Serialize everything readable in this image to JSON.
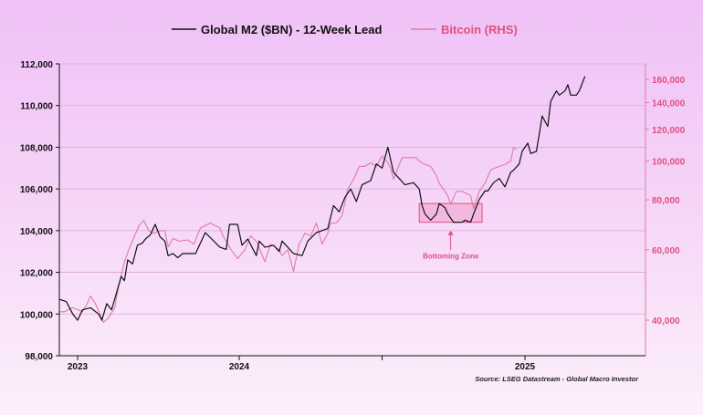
{
  "chart_data": {
    "type": "line",
    "title": "",
    "xlabel": "",
    "ylabel": "",
    "x_ticks": [
      {
        "value": 2023,
        "label": "2023"
      },
      {
        "value": 2024,
        "label": "2024"
      },
      {
        "value": 2024.5,
        "label": ""
      },
      {
        "value": 2025,
        "label": "2025"
      }
    ],
    "xlim": [
      2022.89,
      2025.42
    ],
    "y_left": {
      "lim": [
        98000,
        112000
      ],
      "ticks": [
        98000,
        100000,
        102000,
        104000,
        106000,
        108000,
        110000,
        112000
      ],
      "tick_labels": [
        "98,000",
        "100,000",
        "102,000",
        "104,000",
        "106,000",
        "108,000",
        "110,000",
        "112,000"
      ],
      "grid": true
    },
    "y_right": {
      "scale": "log",
      "lim": [
        32600,
        175000
      ],
      "ticks": [
        40000,
        60000,
        80000,
        100000,
        120000,
        140000,
        160000
      ],
      "tick_labels": [
        "40,000",
        "60,000",
        "80,000",
        "100,000",
        "120,000",
        "140,000",
        "160,000"
      ]
    },
    "legend_placement": "top-center",
    "series": [
      {
        "name": "Global M2 ($BN) - 12-Week Lead",
        "axis": "left",
        "color": "#111111",
        "x": [
          2022.89,
          2022.93,
          2022.97,
          2023.0,
          2023.03,
          2023.08,
          2023.13,
          2023.15,
          2023.18,
          2023.21,
          2023.24,
          2023.27,
          2023.29,
          2023.31,
          2023.34,
          2023.37,
          2023.4,
          2023.42,
          2023.45,
          2023.48,
          2023.51,
          2023.54,
          2023.56,
          2023.59,
          2023.62,
          2023.65,
          2023.69,
          2023.73,
          2023.79,
          2023.83,
          2023.88,
          2023.92,
          2023.94,
          2023.99,
          2024.01,
          2024.03,
          2024.06,
          2024.07,
          2024.09,
          2024.12,
          2024.14,
          2024.15,
          2024.19,
          2024.22,
          2024.24,
          2024.27,
          2024.31,
          2024.33,
          2024.35,
          2024.37,
          2024.39,
          2024.41,
          2024.43,
          2024.46,
          2024.48,
          2024.5,
          2024.52,
          2024.53,
          2024.54,
          2024.56,
          2024.58,
          2024.61,
          2024.63,
          2024.64,
          2024.65,
          2024.67,
          2024.69,
          2024.7,
          2024.72,
          2024.73,
          2024.75,
          2024.78,
          2024.79,
          2024.81,
          2024.82,
          2024.84,
          2024.86,
          2024.87,
          2024.89,
          2024.91,
          2024.93,
          2024.95,
          2024.96,
          2024.98,
          2024.99,
          2025.01,
          2025.02,
          2025.04,
          2025.05,
          2025.06,
          2025.08,
          2025.09,
          2025.11,
          2025.12,
          2025.14,
          2025.15,
          2025.16,
          2025.18,
          2025.19,
          2025.21
        ],
        "y": [
          100700,
          100600,
          100000,
          99700,
          100200,
          100300,
          100000,
          99700,
          100500,
          100200,
          101000,
          101800,
          101600,
          102600,
          102400,
          103300,
          103400,
          103600,
          103800,
          104300,
          103700,
          103500,
          102800,
          102900,
          102700,
          102900,
          102900,
          102900,
          103900,
          103600,
          103200,
          103100,
          104300,
          104300,
          103300,
          103600,
          102800,
          103500,
          103200,
          103300,
          103000,
          103500,
          102900,
          102800,
          103500,
          103900,
          104100,
          105200,
          104900,
          105600,
          106000,
          105400,
          106200,
          106400,
          107200,
          107000,
          108000,
          107400,
          106800,
          106500,
          106200,
          106300,
          106000,
          105200,
          104800,
          104500,
          104800,
          105300,
          105100,
          104800,
          104400,
          104400,
          104500,
          104400,
          104800,
          105500,
          105900,
          105900,
          106300,
          106500,
          106100,
          106800,
          106900,
          107200,
          107800,
          108200,
          107700,
          107800,
          108600,
          109500,
          109000,
          110200,
          110700,
          110500,
          110700,
          111000,
          110500,
          110500,
          110700,
          111400
        ]
      },
      {
        "name": "Bitcoin (RHS)",
        "axis": "right",
        "color": "#e07aa8",
        "x": [
          2022.89,
          2022.92,
          2022.97,
          2023.03,
          2023.06,
          2023.08,
          2023.11,
          2023.16,
          2023.19,
          2023.23,
          2023.25,
          2023.29,
          2023.32,
          2023.36,
          2023.38,
          2023.41,
          2023.44,
          2023.47,
          2023.51,
          2023.54,
          2023.56,
          2023.59,
          2023.63,
          2023.68,
          2023.72,
          2023.76,
          2023.82,
          2023.88,
          2023.9,
          2023.95,
          2023.99,
          2024.02,
          2024.04,
          2024.06,
          2024.09,
          2024.11,
          2024.14,
          2024.15,
          2024.17,
          2024.19,
          2024.21,
          2024.23,
          2024.25,
          2024.27,
          2024.29,
          2024.31,
          2024.32,
          2024.34,
          2024.36,
          2024.38,
          2024.4,
          2024.42,
          2024.44,
          2024.46,
          2024.48,
          2024.5,
          2024.52,
          2024.53,
          2024.54,
          2024.57,
          2024.59,
          2024.62,
          2024.63,
          2024.65,
          2024.67,
          2024.69,
          2024.7,
          2024.73,
          2024.74,
          2024.76,
          2024.78,
          2024.81,
          2024.82,
          2024.84,
          2024.86,
          2024.88,
          2024.91,
          2024.93,
          2024.95,
          2024.96,
          2024.97
        ],
        "y": [
          42000,
          42000,
          43000,
          42000,
          44000,
          46000,
          44000,
          39500,
          40500,
          43000,
          48000,
          56000,
          60500,
          66000,
          69000,
          71000,
          67000,
          66000,
          67000,
          67000,
          61000,
          64000,
          63000,
          63500,
          62000,
          68000,
          70000,
          68000,
          65000,
          60000,
          57000,
          60000,
          65000,
          63000,
          56000,
          62000,
          60000,
          58000,
          60000,
          53000,
          62000,
          66000,
          65000,
          70000,
          62000,
          66000,
          70000,
          70000,
          73000,
          85000,
          90000,
          97000,
          97000,
          99000,
          97000,
          103000,
          99000,
          96000,
          90000,
          102000,
          102000,
          102000,
          100000,
          98000,
          97000,
          92000,
          88000,
          82000,
          78000,
          84000,
          84000,
          82000,
          76000,
          84000,
          88000,
          95000,
          97000,
          98000,
          100000,
          108000,
          107000
        ]
      }
    ],
    "annotations": [
      {
        "text": "Bottoming Zone",
        "color": "#e0507e",
        "box": {
          "x0": 2024.63,
          "x1": 2024.85,
          "y0_left": 104400,
          "y1_left": 105300
        }
      }
    ],
    "source": "Source: LSEG Datastream - Global Macro Investor"
  },
  "colors": {
    "left_axis": "#111111",
    "right_axis": "#e07aa8",
    "right_tick_text": "#e0507e",
    "grid": "#d9a8d6"
  }
}
